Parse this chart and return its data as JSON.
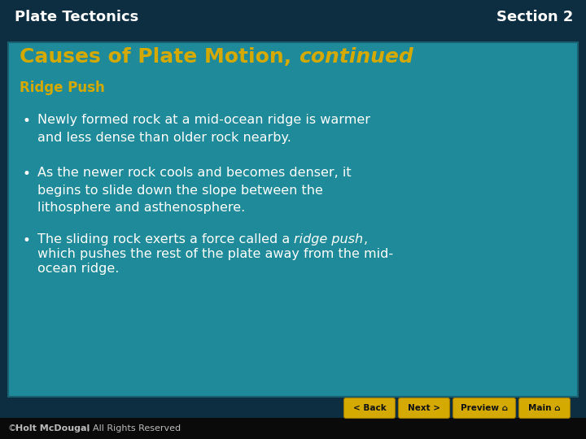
{
  "header_bg": "#0d2d40",
  "content_bg": "#1e8a9a",
  "header_left": "Plate Tectonics",
  "header_right": "Section 2",
  "header_text_color": "#ffffff",
  "title_normal": "Causes of Plate Motion, ",
  "title_italic": "continued",
  "title_color": "#d4aa00",
  "section_head": "Ridge Push",
  "section_head_color": "#d4aa00",
  "bullet1": "Newly formed rock at a mid-ocean ridge is warmer\nand less dense than older rock nearby.",
  "bullet2": "As the newer rock cools and becomes denser, it\nbegins to slide down the slope between the\nlithosphere and asthenosphere.",
  "bullet3_pre": "The sliding rock exerts a force called a ",
  "bullet3_italic": "ridge push",
  "bullet3_post": ",\nwhich pushes the rest of the plate away from the mid-\nocean ridge.",
  "bullet_color": "#ffffff",
  "footer_bg": "#0a0a0a",
  "footer_text_color": "#bbbbbb",
  "footer_bold": "Holt McDougal",
  "footer_rest": ", All Rights Reserved",
  "button_color": "#d4aa00",
  "button_text_color": "#111111",
  "buttons": [
    "< Back",
    "Next >",
    "Preview",
    "Main"
  ],
  "content_border": "#1a6070"
}
